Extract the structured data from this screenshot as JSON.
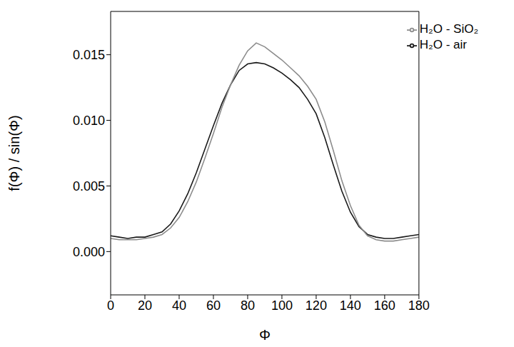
{
  "chart_data": {
    "type": "line",
    "x_label": "Φ",
    "y_label": "f(Φ) / sin(Φ)",
    "x": [
      0,
      5,
      10,
      15,
      20,
      25,
      30,
      35,
      40,
      45,
      50,
      55,
      60,
      65,
      70,
      75,
      80,
      85,
      90,
      95,
      100,
      105,
      110,
      115,
      120,
      125,
      130,
      135,
      140,
      145,
      150,
      155,
      160,
      165,
      170,
      175,
      180
    ],
    "series": [
      {
        "name": "H₂O - air",
        "color": "#1a1a1a",
        "values": [
          0.0012,
          0.0011,
          0.001,
          0.0011,
          0.0011,
          0.0013,
          0.0015,
          0.0021,
          0.0031,
          0.0044,
          0.006,
          0.0078,
          0.0096,
          0.0113,
          0.0127,
          0.0138,
          0.0143,
          0.0144,
          0.0143,
          0.014,
          0.0136,
          0.0131,
          0.0125,
          0.0116,
          0.0105,
          0.0087,
          0.0066,
          0.0046,
          0.003,
          0.0019,
          0.0013,
          0.0011,
          0.001,
          0.001,
          0.0011,
          0.0012,
          0.0013
        ]
      },
      {
        "name": "H₂O - SiO₂",
        "color": "#8c8c8c",
        "values": [
          0.001,
          0.0009,
          0.0009,
          0.0009,
          0.001,
          0.0011,
          0.0013,
          0.0018,
          0.0026,
          0.0038,
          0.0053,
          0.0071,
          0.009,
          0.011,
          0.0127,
          0.0142,
          0.0153,
          0.0159,
          0.0156,
          0.0151,
          0.0146,
          0.014,
          0.0134,
          0.0126,
          0.0116,
          0.0099,
          0.0077,
          0.0054,
          0.0035,
          0.002,
          0.0012,
          0.0009,
          0.0008,
          0.0008,
          0.0009,
          0.001,
          0.0011
        ]
      }
    ],
    "xlim": [
      0,
      180
    ],
    "xticks": [
      0,
      20,
      40,
      60,
      80,
      100,
      120,
      140,
      160,
      180
    ],
    "ylim": [
      -0.0033,
      0.0183
    ],
    "yticks": [
      {
        "value": 0,
        "label": "0.000"
      },
      {
        "value": 0.005,
        "label": "0.005"
      },
      {
        "value": 0.01,
        "label": "0.010"
      },
      {
        "value": 0.015,
        "label": "0.015"
      }
    ],
    "grid": false,
    "legend": "top-right",
    "line_style": "solid"
  }
}
